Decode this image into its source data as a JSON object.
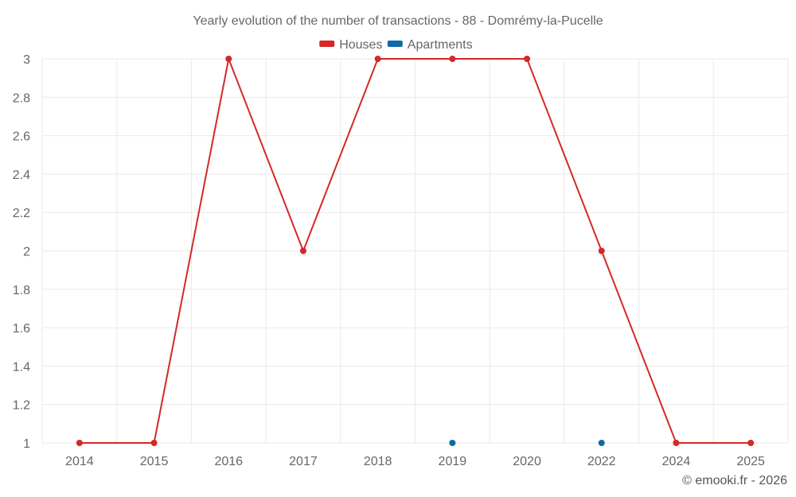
{
  "chart_data": {
    "type": "line",
    "title": "Yearly evolution of the number of transactions - 88 - Domrémy-la-Pucelle",
    "categories": [
      "2014",
      "2015",
      "2016",
      "2017",
      "2018",
      "2019",
      "2020",
      "2022",
      "2024",
      "2025"
    ],
    "series": [
      {
        "name": "Houses",
        "color": "#d62728",
        "values": [
          1,
          1,
          3,
          2,
          3,
          3,
          3,
          2,
          1,
          1
        ]
      },
      {
        "name": "Apartments",
        "color": "#0f6aa6",
        "values": [
          null,
          null,
          null,
          null,
          null,
          1,
          null,
          1,
          null,
          null
        ]
      }
    ],
    "yticks": [
      "1",
      "1.2",
      "1.4",
      "1.6",
      "1.8",
      "2",
      "2.2",
      "2.4",
      "2.6",
      "2.8",
      "3"
    ],
    "ylim": [
      1,
      3
    ],
    "xlabel": "",
    "ylabel": "",
    "legend": "top-center",
    "grid": true
  },
  "credit": "© emooki.fr - 2026"
}
